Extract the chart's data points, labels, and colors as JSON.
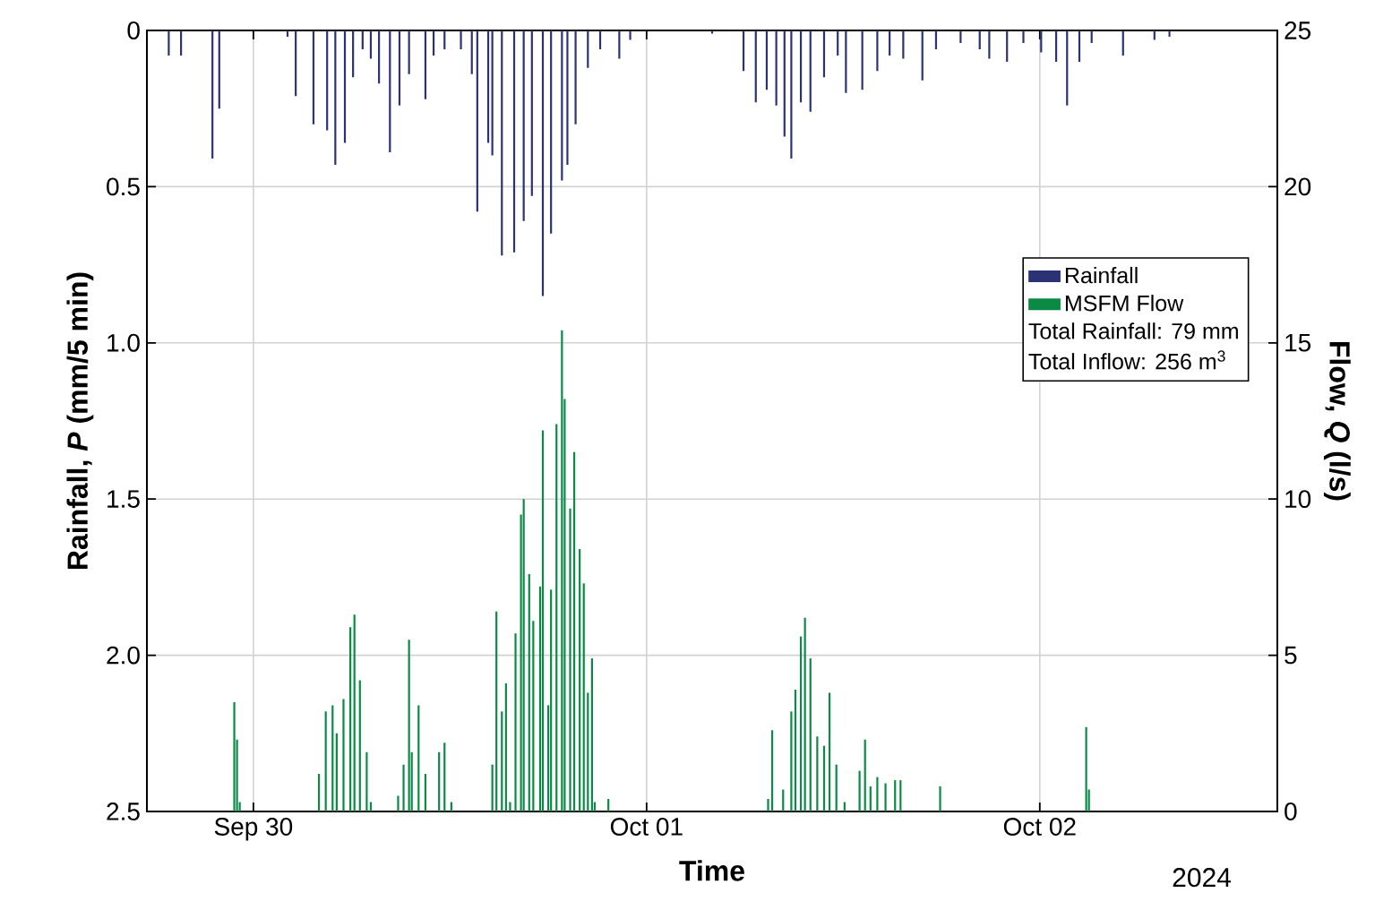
{
  "chart_data": {
    "type": "bar",
    "xlabel": "Time",
    "ylabel": "Rainfall, *P* (mm/5 min)",
    "y2label": "Flow, *Q* (l/s)",
    "xlim": [
      "2024-09-29T17:30",
      "2024-10-02T14:30"
    ],
    "xticks": [
      {
        "value": "2024-09-30",
        "label": "Sep 30"
      },
      {
        "value": "2024-10-01",
        "label": "Oct 01"
      },
      {
        "value": "2024-10-02",
        "label": "Oct 02"
      }
    ],
    "ylim": [
      2.5,
      0
    ],
    "yticks": [
      0,
      0.5,
      {
        "value": 1,
        "label": "1.0"
      },
      1.5,
      {
        "value": 2,
        "label": "2.0"
      },
      2.5
    ],
    "y2lim": [
      0,
      25
    ],
    "y2ticks": [
      0,
      5,
      10,
      15,
      20,
      25
    ],
    "grid": true,
    "legend": "right",
    "annotations": [
      "Total Rainfall: 79 mm",
      "Total Inflow: 256 m$^{3}$",
      "2024"
    ],
    "series": [
      {
        "name": "Rainfall",
        "color": "#2b3275",
        "axis": "y",
        "x": [
          "2024-09-29T18:50",
          "2024-09-29T19:35",
          "2024-09-29T21:30",
          "2024-09-29T21:55",
          "2024-09-30T02:05",
          "2024-09-30T02:35",
          "2024-09-30T03:40",
          "2024-09-30T04:30",
          "2024-09-30T05:00",
          "2024-09-30T05:35",
          "2024-09-30T06:05",
          "2024-09-30T06:40",
          "2024-09-30T07:10",
          "2024-09-30T07:40",
          "2024-09-30T08:20",
          "2024-09-30T08:55",
          "2024-09-30T09:30",
          "2024-09-30T10:30",
          "2024-09-30T11:00",
          "2024-09-30T11:40",
          "2024-09-30T12:40",
          "2024-09-30T13:20",
          "2024-09-30T13:40",
          "2024-09-30T14:20",
          "2024-09-30T14:35",
          "2024-09-30T15:10",
          "2024-09-30T15:55",
          "2024-09-30T16:30",
          "2024-09-30T17:00",
          "2024-09-30T17:40",
          "2024-09-30T18:10",
          "2024-09-30T18:50",
          "2024-09-30T19:10",
          "2024-09-30T19:40",
          "2024-09-30T20:25",
          "2024-09-30T21:10",
          "2024-09-30T22:20",
          "2024-09-30T23:00",
          "2024-10-01T04:00",
          "2024-10-01T05:55",
          "2024-10-01T06:40",
          "2024-10-01T07:20",
          "2024-10-01T07:55",
          "2024-10-01T08:25",
          "2024-10-01T08:50",
          "2024-10-01T09:25",
          "2024-10-01T10:00",
          "2024-10-01T10:50",
          "2024-10-01T11:40",
          "2024-10-01T12:10",
          "2024-10-01T13:10",
          "2024-10-01T14:05",
          "2024-10-01T14:50",
          "2024-10-01T15:40",
          "2024-10-01T16:50",
          "2024-10-01T17:40",
          "2024-10-01T19:10",
          "2024-10-01T20:20",
          "2024-10-01T20:55",
          "2024-10-01T22:00",
          "2024-10-01T23:00",
          "2024-10-02T00:05",
          "2024-10-02T01:00",
          "2024-10-02T01:40",
          "2024-10-02T02:25",
          "2024-10-02T03:10",
          "2024-10-02T05:05",
          "2024-10-02T07:00",
          "2024-10-02T07:55"
        ],
        "values": [
          0.08,
          0.08,
          0.41,
          0.25,
          0.02,
          0.21,
          0.3,
          0.32,
          0.43,
          0.36,
          0.15,
          0.06,
          0.09,
          0.17,
          0.39,
          0.24,
          0.14,
          0.22,
          0.08,
          0.06,
          0.06,
          0.14,
          0.58,
          0.36,
          0.4,
          0.72,
          0.71,
          0.61,
          0.53,
          0.85,
          0.65,
          0.48,
          0.43,
          0.3,
          0.12,
          0.06,
          0.09,
          0.03,
          0.01,
          0.13,
          0.23,
          0.19,
          0.24,
          0.34,
          0.41,
          0.23,
          0.26,
          0.15,
          0.08,
          0.2,
          0.19,
          0.13,
          0.08,
          0.09,
          0.16,
          0.06,
          0.04,
          0.06,
          0.09,
          0.1,
          0.04,
          0.07,
          0.1,
          0.24,
          0.1,
          0.04,
          0.08,
          0.03,
          0.02
        ]
      },
      {
        "name": "MSFM Flow",
        "color": "#0a8a44",
        "axis": "y2",
        "x": [
          "2024-09-29T22:50",
          "2024-09-29T23:00",
          "2024-09-29T23:10",
          "2024-09-30T04:00",
          "2024-09-30T04:25",
          "2024-09-30T04:50",
          "2024-09-30T05:05",
          "2024-09-30T05:30",
          "2024-09-30T05:55",
          "2024-09-30T06:10",
          "2024-09-30T06:30",
          "2024-09-30T06:55",
          "2024-09-30T07:10",
          "2024-09-30T08:50",
          "2024-09-30T09:10",
          "2024-09-30T09:30",
          "2024-09-30T09:40",
          "2024-09-30T10:05",
          "2024-09-30T10:30",
          "2024-09-30T11:20",
          "2024-09-30T11:40",
          "2024-09-30T12:05",
          "2024-09-30T14:35",
          "2024-09-30T14:50",
          "2024-09-30T15:10",
          "2024-09-30T15:25",
          "2024-09-30T15:40",
          "2024-09-30T16:00",
          "2024-09-30T16:20",
          "2024-09-30T16:30",
          "2024-09-30T16:50",
          "2024-09-30T17:05",
          "2024-09-30T17:30",
          "2024-09-30T17:40",
          "2024-09-30T18:00",
          "2024-09-30T18:10",
          "2024-09-30T18:30",
          "2024-09-30T18:50",
          "2024-09-30T19:00",
          "2024-09-30T19:20",
          "2024-09-30T19:35",
          "2024-09-30T19:55",
          "2024-09-30T20:10",
          "2024-09-30T20:25",
          "2024-09-30T20:40",
          "2024-09-30T20:50",
          "2024-09-30T21:40",
          "2024-10-01T07:25",
          "2024-10-01T07:40",
          "2024-10-01T08:20",
          "2024-10-01T08:50",
          "2024-10-01T09:05",
          "2024-10-01T09:25",
          "2024-10-01T09:40",
          "2024-10-01T10:00",
          "2024-10-01T10:25",
          "2024-10-01T10:50",
          "2024-10-01T11:10",
          "2024-10-01T11:35",
          "2024-10-01T12:05",
          "2024-10-01T13:00",
          "2024-10-01T13:20",
          "2024-10-01T13:40",
          "2024-10-01T14:05",
          "2024-10-01T14:35",
          "2024-10-01T15:10",
          "2024-10-01T15:30",
          "2024-10-01T17:55",
          "2024-10-02T02:50",
          "2024-10-02T03:00"
        ],
        "values": [
          3.5,
          2.3,
          0.3,
          1.2,
          3.2,
          3.4,
          2.5,
          3.6,
          5.9,
          6.3,
          4.2,
          1.9,
          0.3,
          0.5,
          1.5,
          5.5,
          1.9,
          3.4,
          1.2,
          1.9,
          2.2,
          0.3,
          1.5,
          6.4,
          3.2,
          4.1,
          0.3,
          5.7,
          9.5,
          10.0,
          7.6,
          6.1,
          7.2,
          12.2,
          3.4,
          7.1,
          12.4,
          15.4,
          13.2,
          9.7,
          11.5,
          8.4,
          7.3,
          3.8,
          4.9,
          0.3,
          0.4,
          0.4,
          2.6,
          0.7,
          3.2,
          3.9,
          5.6,
          6.2,
          4.9,
          2.4,
          2.1,
          3.8,
          1.5,
          0.3,
          1.3,
          2.3,
          0.8,
          1.1,
          0.9,
          1.0,
          1.0,
          0.8,
          2.7,
          0.7
        ]
      }
    ]
  }
}
